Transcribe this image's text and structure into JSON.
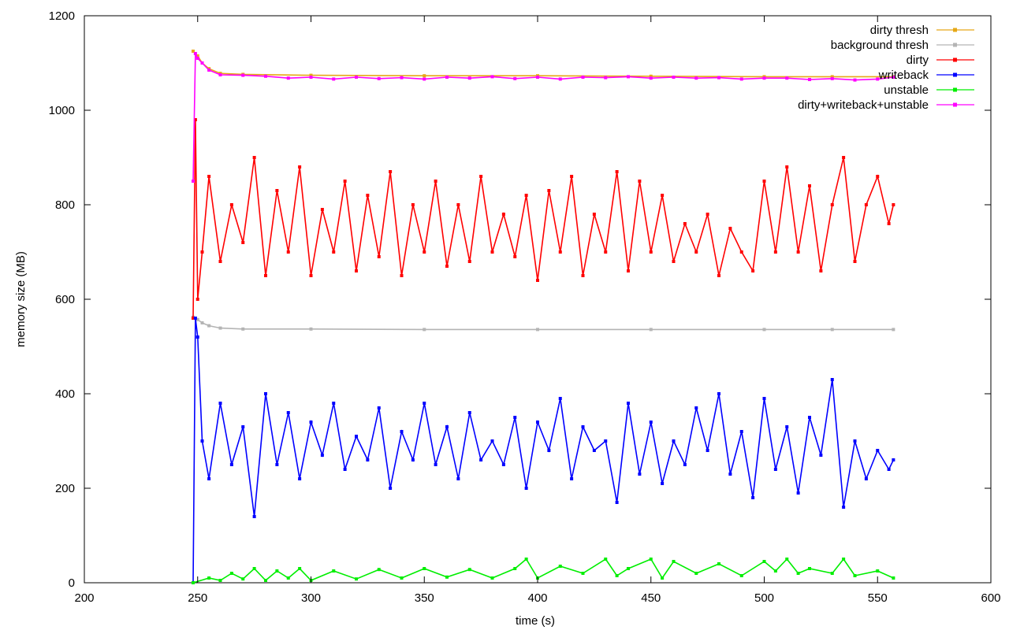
{
  "chart_data": {
    "type": "line",
    "title": "",
    "xlabel": "time (s)",
    "ylabel": "memory size (MB)",
    "xlim": [
      200,
      600
    ],
    "ylim": [
      0,
      1200
    ],
    "xticks": [
      200,
      250,
      300,
      350,
      400,
      450,
      500,
      550,
      600
    ],
    "yticks": [
      0,
      200,
      400,
      600,
      800,
      1000,
      1200
    ],
    "grid": false,
    "legend_position": "top-right",
    "series": [
      {
        "name": "dirty thresh",
        "color": "#e6a817",
        "x": [
          248,
          250,
          252,
          255,
          260,
          270,
          300,
          350,
          400,
          450,
          500,
          530,
          557
        ],
        "y": [
          1125,
          1115,
          1100,
          1088,
          1078,
          1076,
          1074,
          1073,
          1073,
          1072,
          1071,
          1071,
          1071
        ]
      },
      {
        "name": "background thresh",
        "color": "#b4b4b4",
        "x": [
          248,
          250,
          252,
          255,
          260,
          270,
          300,
          350,
          400,
          450,
          500,
          530,
          557
        ],
        "y": [
          562,
          557,
          550,
          544,
          539,
          537,
          537,
          536,
          536,
          536,
          536,
          536,
          536
        ]
      },
      {
        "name": "dirty",
        "color": "#ff0000",
        "x": [
          248,
          249,
          250,
          252,
          255,
          260,
          265,
          270,
          275,
          280,
          285,
          290,
          295,
          300,
          305,
          310,
          315,
          320,
          325,
          330,
          335,
          340,
          345,
          350,
          355,
          360,
          365,
          370,
          375,
          380,
          385,
          390,
          395,
          400,
          405,
          410,
          415,
          420,
          425,
          430,
          435,
          440,
          445,
          450,
          455,
          460,
          465,
          470,
          475,
          480,
          485,
          490,
          495,
          500,
          505,
          510,
          515,
          520,
          525,
          530,
          535,
          540,
          545,
          550,
          555,
          557
        ],
        "y": [
          560,
          980,
          600,
          700,
          860,
          680,
          800,
          720,
          900,
          650,
          830,
          700,
          880,
          650,
          790,
          700,
          850,
          660,
          820,
          690,
          870,
          650,
          800,
          700,
          850,
          670,
          800,
          680,
          860,
          700,
          780,
          690,
          820,
          640,
          830,
          700,
          860,
          650,
          780,
          700,
          870,
          660,
          850,
          700,
          820,
          680,
          760,
          700,
          780,
          650,
          750,
          700,
          660,
          850,
          700,
          880,
          700,
          840,
          660,
          800,
          900,
          680,
          800,
          860,
          760,
          800
        ]
      },
      {
        "name": "writeback",
        "color": "#0000ff",
        "x": [
          248,
          249,
          250,
          252,
          255,
          260,
          265,
          270,
          275,
          280,
          285,
          290,
          295,
          300,
          305,
          310,
          315,
          320,
          325,
          330,
          335,
          340,
          345,
          350,
          355,
          360,
          365,
          370,
          375,
          380,
          385,
          390,
          395,
          400,
          405,
          410,
          415,
          420,
          425,
          430,
          435,
          440,
          445,
          450,
          455,
          460,
          465,
          470,
          475,
          480,
          485,
          490,
          495,
          500,
          505,
          510,
          515,
          520,
          525,
          530,
          535,
          540,
          545,
          550,
          555,
          557
        ],
        "y": [
          0,
          560,
          520,
          300,
          220,
          380,
          250,
          330,
          140,
          400,
          250,
          360,
          220,
          340,
          270,
          380,
          240,
          310,
          260,
          370,
          200,
          320,
          260,
          380,
          250,
          330,
          220,
          360,
          260,
          300,
          250,
          350,
          200,
          340,
          280,
          390,
          220,
          330,
          280,
          300,
          170,
          380,
          230,
          340,
          210,
          300,
          250,
          370,
          280,
          400,
          230,
          320,
          180,
          390,
          240,
          330,
          190,
          350,
          270,
          430,
          160,
          300,
          220,
          280,
          240,
          260
        ]
      },
      {
        "name": "unstable",
        "color": "#00ee00",
        "x": [
          248,
          255,
          260,
          265,
          270,
          275,
          280,
          285,
          290,
          295,
          300,
          310,
          320,
          330,
          340,
          350,
          360,
          370,
          380,
          390,
          395,
          400,
          410,
          420,
          430,
          435,
          440,
          450,
          455,
          460,
          470,
          480,
          490,
          500,
          505,
          510,
          515,
          520,
          530,
          535,
          540,
          550,
          557
        ],
        "y": [
          0,
          10,
          5,
          20,
          8,
          30,
          5,
          25,
          10,
          30,
          5,
          25,
          8,
          28,
          10,
          30,
          12,
          28,
          10,
          30,
          50,
          10,
          35,
          20,
          50,
          15,
          30,
          50,
          10,
          45,
          20,
          40,
          15,
          45,
          25,
          50,
          20,
          30,
          20,
          50,
          15,
          25,
          10
        ]
      },
      {
        "name": "dirty+writeback+unstable",
        "color": "#ff00ff",
        "x": [
          248,
          249,
          250,
          252,
          255,
          260,
          270,
          280,
          290,
          300,
          310,
          320,
          330,
          340,
          350,
          360,
          370,
          380,
          390,
          400,
          410,
          420,
          430,
          440,
          450,
          460,
          470,
          480,
          490,
          500,
          510,
          520,
          530,
          540,
          550,
          557
        ],
        "y": [
          850,
          1120,
          1110,
          1100,
          1085,
          1075,
          1074,
          1072,
          1068,
          1070,
          1066,
          1070,
          1067,
          1069,
          1066,
          1070,
          1068,
          1071,
          1067,
          1070,
          1066,
          1070,
          1069,
          1071,
          1068,
          1070,
          1068,
          1069,
          1066,
          1068,
          1068,
          1065,
          1067,
          1064,
          1066,
          1070
        ]
      }
    ]
  }
}
